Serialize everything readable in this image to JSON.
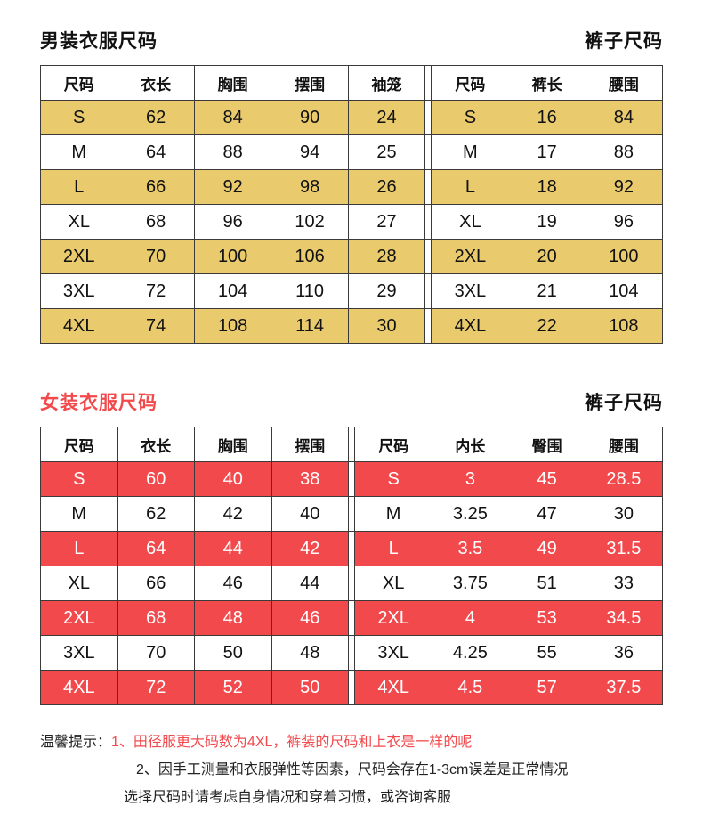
{
  "men": {
    "title_left": "男装衣服尺码",
    "title_right": "裤子尺码",
    "highlight_color": "#e9cb6d",
    "highlight_text": "#111111",
    "clothes": {
      "headers": [
        "尺码",
        "衣长",
        "胸围",
        "摆围",
        "袖笼"
      ],
      "rows": [
        [
          "S",
          "62",
          "84",
          "90",
          "24"
        ],
        [
          "M",
          "64",
          "88",
          "94",
          "25"
        ],
        [
          "L",
          "66",
          "92",
          "98",
          "26"
        ],
        [
          "XL",
          "68",
          "96",
          "102",
          "27"
        ],
        [
          "2XL",
          "70",
          "100",
          "106",
          "28"
        ],
        [
          "3XL",
          "72",
          "104",
          "110",
          "29"
        ],
        [
          "4XL",
          "74",
          "108",
          "114",
          "30"
        ]
      ]
    },
    "pants": {
      "headers": [
        "尺码",
        "裤长",
        "腰围"
      ],
      "rows": [
        [
          "S",
          "16",
          "84"
        ],
        [
          "M",
          "17",
          "88"
        ],
        [
          "L",
          "18",
          "92"
        ],
        [
          "XL",
          "19",
          "96"
        ],
        [
          "2XL",
          "20",
          "100"
        ],
        [
          "3XL",
          "21",
          "104"
        ],
        [
          "4XL",
          "22",
          "108"
        ]
      ]
    }
  },
  "women": {
    "title_left": "女装衣服尺码",
    "title_right": "裤子尺码",
    "title_color": "#f2494c",
    "highlight_color": "#f2494c",
    "highlight_text": "#ffffff",
    "clothes": {
      "headers": [
        "尺码",
        "衣长",
        "胸围",
        "摆围"
      ],
      "rows": [
        [
          "S",
          "60",
          "40",
          "38"
        ],
        [
          "M",
          "62",
          "42",
          "40"
        ],
        [
          "L",
          "64",
          "44",
          "42"
        ],
        [
          "XL",
          "66",
          "46",
          "44"
        ],
        [
          "2XL",
          "68",
          "48",
          "46"
        ],
        [
          "3XL",
          "70",
          "50",
          "48"
        ],
        [
          "4XL",
          "72",
          "52",
          "50"
        ]
      ]
    },
    "pants": {
      "headers": [
        "尺码",
        "内长",
        "臀围",
        "腰围"
      ],
      "rows": [
        [
          "S",
          "3",
          "45",
          "28.5"
        ],
        [
          "M",
          "3.25",
          "47",
          "30"
        ],
        [
          "L",
          "3.5",
          "49",
          "31.5"
        ],
        [
          "XL",
          "3.75",
          "51",
          "33"
        ],
        [
          "2XL",
          "4",
          "53",
          "34.5"
        ],
        [
          "3XL",
          "4.25",
          "55",
          "36"
        ],
        [
          "4XL",
          "4.5",
          "57",
          "37.5"
        ]
      ]
    }
  },
  "notes": {
    "label": "温馨提示：",
    "line1": "1、田径服更大码数为4XL，裤装的尺码和上衣是一样的呢",
    "line2": "2、因手工测量和衣服弹性等因素，尺码会存在1-3cm误差是正常情况",
    "line3": "选择尺码时请考虑自身情况和穿着习惯，或咨询客服",
    "red": "#f2494c"
  }
}
